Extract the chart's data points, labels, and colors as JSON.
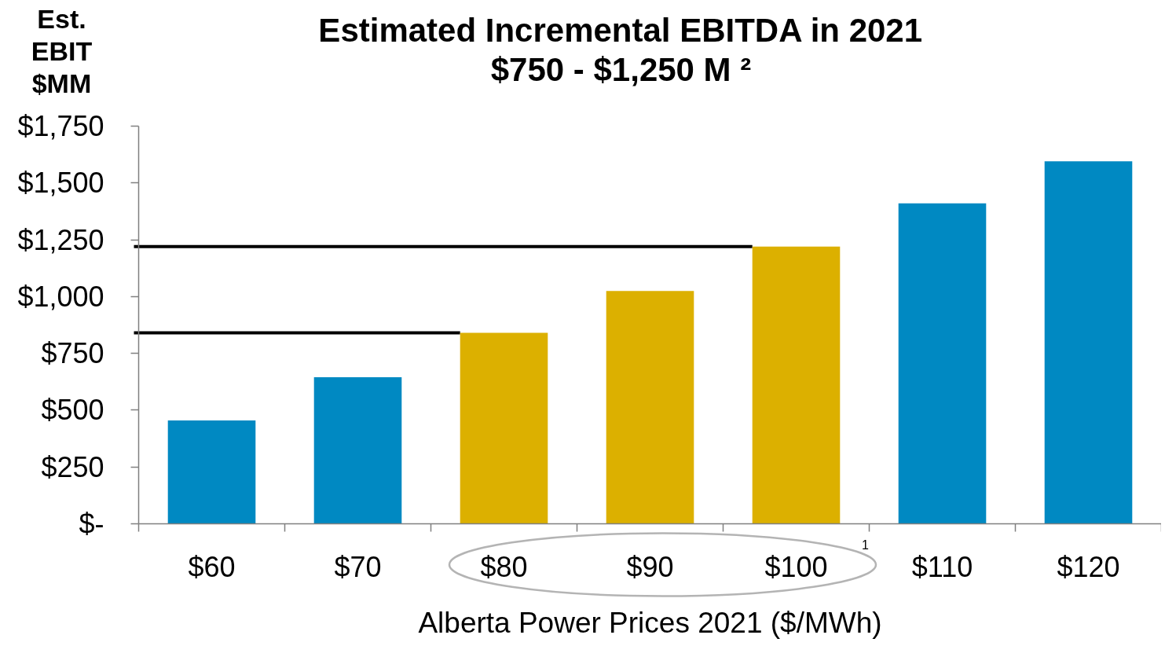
{
  "chart_data": {
    "type": "bar",
    "title": "Estimated Incremental EBITDA in 2021",
    "subtitle": "$750 - $1,250 M ²",
    "ylabel": "Est. EBIT $MM",
    "xlabel": "Alberta Power Prices 2021 ($/MWh)",
    "categories": [
      "$60",
      "$70",
      "$80",
      "$90",
      "$100",
      "$110",
      "$120"
    ],
    "values": [
      455,
      645,
      840,
      1025,
      1220,
      1410,
      1595
    ],
    "colors": [
      "#0089c2",
      "#0089c2",
      "#dcb000",
      "#dcb000",
      "#dcb000",
      "#0089c2",
      "#0089c2"
    ],
    "ylim": [
      0,
      1750
    ],
    "yticks": [
      {
        "value": 0,
        "label": "$-"
      },
      {
        "value": 250,
        "label": "$250"
      },
      {
        "value": 500,
        "label": "$500"
      },
      {
        "value": 750,
        "label": "$750"
      },
      {
        "value": 1000,
        "label": "$1,000"
      },
      {
        "value": 1250,
        "label": "$1,250"
      },
      {
        "value": 1500,
        "label": "$1,500"
      },
      {
        "value": 1750,
        "label": "$1,750"
      }
    ],
    "ref_lines": [
      {
        "axis": "y",
        "value": 1220,
        "color": "#000000"
      },
      {
        "axis": "y",
        "value": 840,
        "color": "#000000"
      }
    ],
    "annotations": [
      "1"
    ]
  }
}
